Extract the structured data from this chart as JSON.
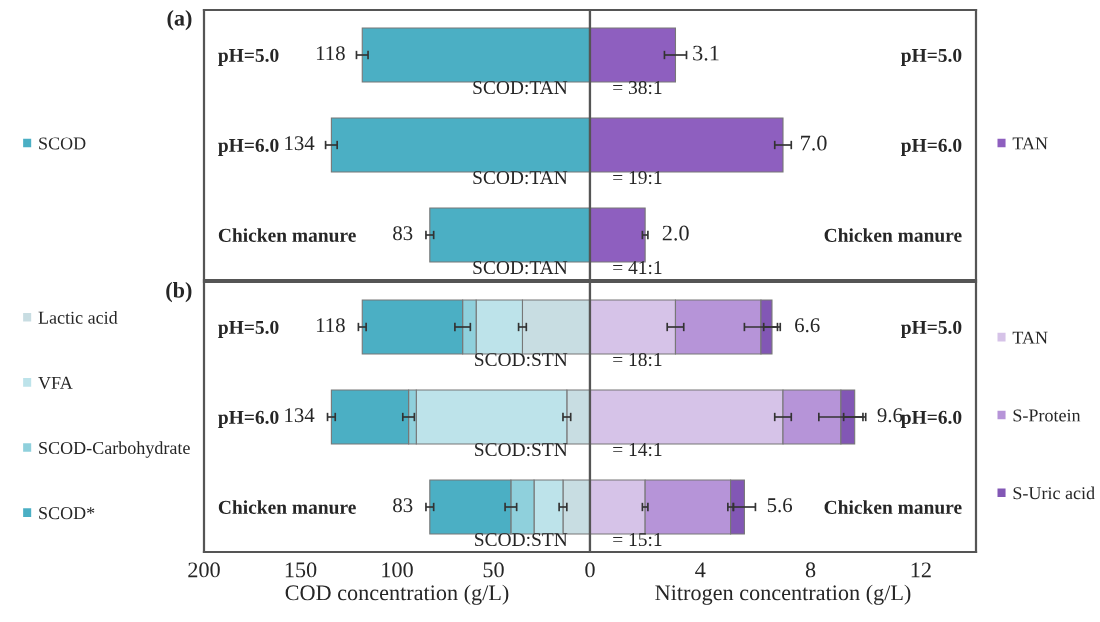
{
  "chart_data": [
    {
      "type": "bar",
      "title": "(a)",
      "orientation": "horizontal",
      "categories": [
        "pH=5.0",
        "pH=6.0",
        "Chicken manure"
      ],
      "xlim": [
        200,
        0
      ],
      "xticks": [
        200,
        150,
        100,
        50,
        0
      ],
      "tick_labels": "y",
      "legend": "left",
      "series": [
        {
          "name": "SCOD",
          "color": "#4bafc4",
          "values": [
            118,
            134,
            83
          ],
          "errors": [
            3,
            3,
            2
          ],
          "value_labels": [
            "118",
            "134",
            "83"
          ]
        }
      ],
      "annotations": [
        "SCOD:TAN",
        "SCOD:TAN",
        "SCOD:TAN"
      ]
    },
    {
      "type": "bar",
      "orientation": "horizontal",
      "categories": [
        "pH=5.0",
        "pH=6.0",
        "Chicken manure"
      ],
      "xlim": [
        0,
        14
      ],
      "xticks": [
        4,
        8,
        12
      ],
      "tick_labels": "y",
      "legend": "right",
      "series": [
        {
          "name": "TAN",
          "color": "#8e5fbf",
          "values": [
            3.1,
            7.0,
            2.0
          ],
          "errors": [
            0.4,
            0.3,
            0.1
          ],
          "value_labels": [
            "3.1",
            "7.0",
            "2.0"
          ]
        }
      ],
      "annotations": [
        "= 38:1",
        "= 19:1",
        "= 41:1"
      ]
    },
    {
      "type": "bar",
      "title": "(b)",
      "orientation": "horizontal",
      "stacked": true,
      "categories": [
        "pH=5.0",
        "pH=6.0",
        "Chicken manure"
      ],
      "xlim": [
        200,
        0
      ],
      "xticks": [
        200,
        150,
        100,
        50,
        0
      ],
      "xlabel": "COD concentration (g/L)",
      "legend": "left",
      "series": [
        {
          "name": "Lactic acid",
          "color": "#c8dde2",
          "values": [
            35,
            12,
            14
          ],
          "errors": [
            2,
            2,
            2
          ]
        },
        {
          "name": "VFA",
          "color": "#bde3ea",
          "values": [
            24,
            78,
            15
          ]
        },
        {
          "name": "SCOD-Carbohydrate",
          "color": "#8fd0dc",
          "values": [
            7,
            4,
            12
          ],
          "errors": [
            4,
            3,
            3
          ]
        },
        {
          "name": "SCOD*",
          "color": "#4bafc4",
          "values": [
            52,
            40,
            42
          ],
          "errors": [
            2,
            2,
            2
          ]
        }
      ],
      "totals": [
        "118",
        "134",
        "83"
      ],
      "annotations": [
        "SCOD:STN",
        "SCOD:STN",
        "SCOD:STN"
      ]
    },
    {
      "type": "bar",
      "orientation": "horizontal",
      "stacked": true,
      "categories": [
        "pH=5.0",
        "pH=6.0",
        "Chicken manure"
      ],
      "xlim": [
        0,
        14
      ],
      "xticks": [
        4,
        8,
        12
      ],
      "xlabel": "Nitrogen concentration (g/L)",
      "legend": "right",
      "series": [
        {
          "name": "TAN",
          "color": "#d6c3e8",
          "values": [
            3.1,
            7.0,
            2.0
          ],
          "errors": [
            0.3,
            0.3,
            0.1
          ]
        },
        {
          "name": "S-Protein",
          "color": "#b694d8",
          "values": [
            3.1,
            2.1,
            3.1
          ],
          "errors": [
            0.6,
            0.8,
            0.1
          ]
        },
        {
          "name": "S-Uric acid",
          "color": "#8257b5",
          "values": [
            0.4,
            0.5,
            0.5
          ],
          "errors": [
            0.3,
            0.4,
            0.4
          ]
        }
      ],
      "totals": [
        "6.6",
        "9.6",
        "5.6"
      ],
      "annotations": [
        "= 18:1",
        "= 14:1",
        "= 15:1"
      ]
    }
  ]
}
